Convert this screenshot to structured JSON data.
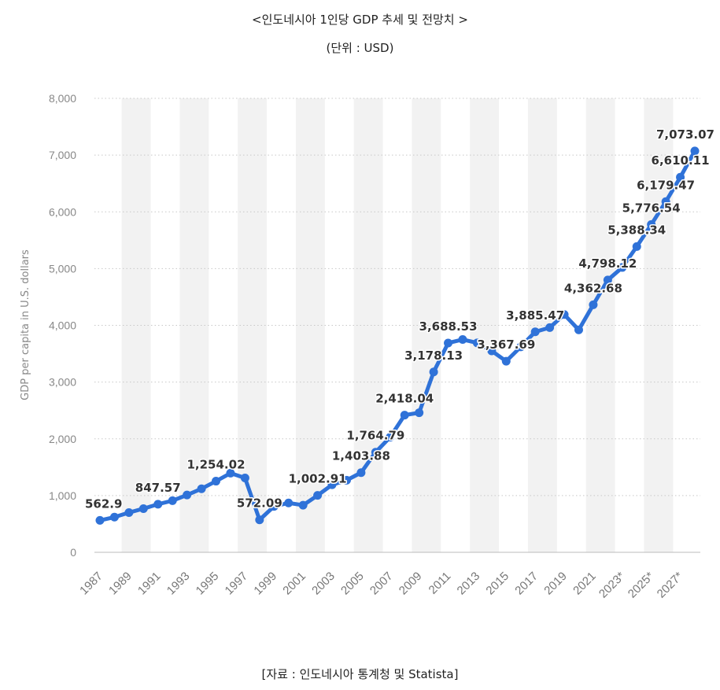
{
  "page": {
    "title": "<인도네시아 1인당 GDP 추세 및 전망치 >",
    "unit": "(단위 : USD)",
    "source": "[자료 : 인도네시아 통계청 및 Statista]"
  },
  "chart_data": {
    "type": "line",
    "ylabel": "GDP per capita in U.S. dollars",
    "ylim": [
      0,
      8000
    ],
    "yticks": [
      0,
      1000,
      2000,
      3000,
      4000,
      5000,
      6000,
      7000,
      8000
    ],
    "ytick_labels": [
      "0",
      "1,000",
      "2,000",
      "3,000",
      "4,000",
      "5,000",
      "6,000",
      "7,000",
      "8,000"
    ],
    "xtick_labels": [
      "1987",
      "1989",
      "1991",
      "1993",
      "1995",
      "1997",
      "1999",
      "2001",
      "2003",
      "2005",
      "2007",
      "2009",
      "2011",
      "2013",
      "2015",
      "2017",
      "2019",
      "2021",
      "2023*",
      "2025*",
      "2027*"
    ],
    "grid": "horizontal dotted",
    "legend": "none",
    "line_color": "#2f72d8",
    "band_color": "#f2f2f2",
    "x": [
      "1987",
      "1988",
      "1989",
      "1990",
      "1991",
      "1992",
      "1993",
      "1994",
      "1995",
      "1996",
      "1997",
      "1998",
      "1999",
      "2000",
      "2001",
      "2002",
      "2003",
      "2004",
      "2005",
      "2006",
      "2007",
      "2008",
      "2009",
      "2010",
      "2011",
      "2012",
      "2013",
      "2014",
      "2015",
      "2016",
      "2017",
      "2018",
      "2019",
      "2020",
      "2021",
      "2022",
      "2023*",
      "2024*",
      "2025*",
      "2026*",
      "2027*",
      "2028*"
    ],
    "values": [
      562.9,
      620,
      700,
      770,
      847.57,
      910,
      1010,
      1120,
      1254.02,
      1395,
      1310,
      572.09,
      810,
      870,
      830,
      1002.91,
      1190,
      1270,
      1403.88,
      1764.79,
      2030,
      2418.04,
      2460,
      3178.13,
      3688.53,
      3750,
      3690,
      3550,
      3367.69,
      3620,
      3885.47,
      3960,
      4190,
      3920,
      4362.68,
      4798.12,
      5020,
      5388.34,
      5776.54,
      6179.47,
      6610.11,
      7073.07
    ],
    "data_labels": [
      {
        "x": "1987",
        "text": "562.9"
      },
      {
        "x": "1991",
        "text": "847.57"
      },
      {
        "x": "1995",
        "text": "1,254.02"
      },
      {
        "x": "1998",
        "text": "572.09"
      },
      {
        "x": "2002",
        "text": "1,002.91"
      },
      {
        "x": "2005",
        "text": "1,403.88"
      },
      {
        "x": "2006",
        "text": "1,764.79"
      },
      {
        "x": "2008",
        "text": "2,418.04"
      },
      {
        "x": "2010",
        "text": "3,178.13"
      },
      {
        "x": "2011",
        "text": "3,688.53"
      },
      {
        "x": "2015",
        "text": "3,367.69"
      },
      {
        "x": "2017",
        "text": "3,885.47"
      },
      {
        "x": "2021",
        "text": "4,362.68"
      },
      {
        "x": "2022",
        "text": "4,798.12"
      },
      {
        "x": "2024*",
        "text": "5,388.34"
      },
      {
        "x": "2025*",
        "text": "5,776.54"
      },
      {
        "x": "2026*",
        "text": "6,179.47"
      },
      {
        "x": "2027*",
        "text": "6,610.11"
      },
      {
        "x": "2028*",
        "text": "7,073.07"
      }
    ]
  }
}
